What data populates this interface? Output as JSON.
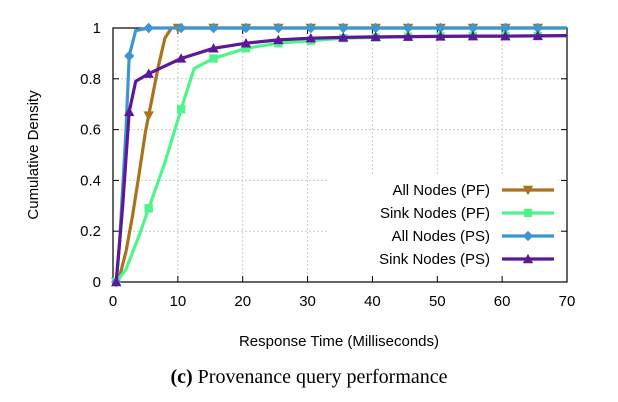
{
  "caption": {
    "tag": "(c)",
    "text": "Provenance query performance"
  },
  "chart_data": {
    "type": "line",
    "title": "",
    "xlabel": "Response Time (Milliseconds)",
    "ylabel": "Cumulative Density",
    "xlim": [
      0,
      70
    ],
    "ylim": [
      0,
      1
    ],
    "xticks": [
      0,
      10,
      20,
      30,
      40,
      50,
      60,
      70
    ],
    "yticks": [
      0,
      0.2,
      0.4,
      0.6,
      0.8,
      1
    ],
    "ytick_labels": [
      "0",
      "0.2",
      "0.4",
      "0.6",
      "0.8",
      "1"
    ],
    "grid": true,
    "legend_position": "bottom-right",
    "series": [
      {
        "name": "All Nodes (PF)",
        "color": "#a8731c",
        "marker": "triangle-down",
        "x": [
          0.5,
          1,
          2,
          3,
          4,
          5,
          6,
          7,
          8,
          9,
          10,
          15,
          20,
          25,
          30,
          35,
          40,
          45,
          50,
          55,
          60,
          65,
          70
        ],
        "y": [
          0,
          0.02,
          0.12,
          0.26,
          0.42,
          0.59,
          0.72,
          0.85,
          0.96,
          1.0,
          1.0,
          1.0,
          1.0,
          1.0,
          1.0,
          1.0,
          1.0,
          1.0,
          1.0,
          1.0,
          1.0,
          1.0,
          1.0
        ],
        "marker_x": [
          0.5,
          5.5,
          10,
          15.5,
          20.5,
          25.5,
          30.5,
          35.5,
          40.5,
          45.5,
          50.5,
          55.5,
          60.5,
          65.5
        ]
      },
      {
        "name": "Sink Nodes (PF)",
        "color": "#4ef58a",
        "marker": "square",
        "x": [
          0.5,
          2,
          4,
          5.5,
          8,
          10.5,
          12.5,
          15.5,
          20.5,
          25.5,
          30.5,
          35.5,
          40.5,
          45.5,
          50.5,
          55.5,
          60.5,
          65.5,
          70
        ],
        "y": [
          0,
          0.05,
          0.18,
          0.29,
          0.47,
          0.68,
          0.84,
          0.88,
          0.92,
          0.94,
          0.95,
          0.96,
          0.963,
          0.966,
          0.967,
          0.968,
          0.968,
          0.969,
          0.97
        ],
        "marker_x": [
          0.5,
          5.5,
          10.5,
          15.5,
          20.5,
          25.5,
          30.5,
          35.5,
          40.5,
          45.5,
          50.5,
          55.5,
          60.5,
          65.5
        ]
      },
      {
        "name": "All Nodes (PS)",
        "color": "#3d97cf",
        "marker": "diamond",
        "x": [
          0.5,
          1,
          2,
          2.5,
          3.5,
          5.5,
          10,
          15,
          20,
          30,
          40,
          50,
          60,
          70
        ],
        "y": [
          0,
          0.15,
          0.6,
          0.89,
          0.99,
          1.0,
          1.0,
          1.0,
          1.0,
          1.0,
          1.0,
          1.0,
          1.0,
          1.0
        ],
        "marker_x": [
          0.5,
          2.5,
          5.5,
          10.5,
          15.5,
          20.5,
          25.5,
          30.5,
          35.5,
          40.5,
          45.5,
          50.5,
          55.5,
          60.5,
          65.5
        ]
      },
      {
        "name": "Sink Nodes (PS)",
        "color": "#5e1799",
        "marker": "triangle-up",
        "x": [
          0.5,
          1.5,
          2.5,
          3.5,
          5.5,
          8,
          10.5,
          15.5,
          20.5,
          25.5,
          30.5,
          35.5,
          40.5,
          45.5,
          50.5,
          55.5,
          60.5,
          65.5,
          70
        ],
        "y": [
          0,
          0.3,
          0.67,
          0.79,
          0.82,
          0.85,
          0.88,
          0.92,
          0.94,
          0.953,
          0.96,
          0.963,
          0.965,
          0.966,
          0.967,
          0.968,
          0.968,
          0.969,
          0.97
        ],
        "marker_x": [
          0.5,
          2.5,
          5.5,
          10.5,
          15.5,
          20.5,
          25.5,
          30.5,
          35.5,
          40.5,
          45.5,
          50.5,
          55.5,
          60.5,
          65.5
        ]
      }
    ]
  }
}
